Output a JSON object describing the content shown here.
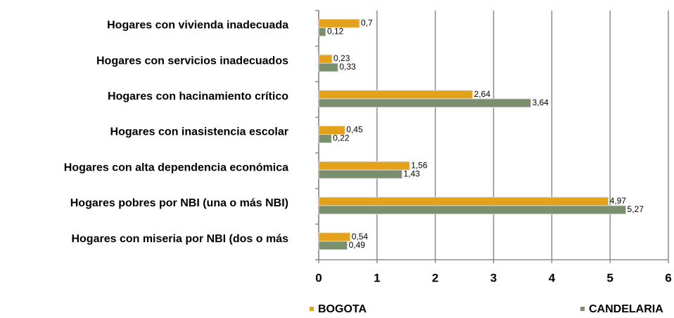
{
  "chart_data": {
    "type": "bar",
    "orientation": "horizontal",
    "categories": [
      "Hogares con vivienda inadecuada",
      "Hogares con servicios inadecuados",
      "Hogares con hacinamiento crítico",
      "Hogares con inasistencia escolar",
      "Hogares con alta dependencia económica",
      "Hogares pobres por NBI (una o más NBI)",
      "Hogares con miseria por NBI (dos o más"
    ],
    "series": [
      {
        "name": "BOGOTA",
        "color": "#e3a21a",
        "values": [
          0.7,
          0.23,
          2.64,
          0.45,
          1.56,
          4.97,
          0.54
        ],
        "value_labels": [
          "0,7",
          "0,23",
          "2,64",
          "0,45",
          "1,56",
          "4,97",
          "0,54"
        ]
      },
      {
        "name": "CANDELARIA",
        "color": "#7a8f6e",
        "values": [
          0.12,
          0.33,
          3.64,
          0.22,
          1.43,
          5.27,
          0.49
        ],
        "value_labels": [
          "0,12",
          "0,33",
          "3,64",
          "0,22",
          "1,43",
          "5,27",
          "0,49"
        ]
      }
    ],
    "xlim": [
      0,
      6
    ],
    "xticks": [
      0,
      1,
      2,
      3,
      4,
      5,
      6
    ],
    "grid": true
  }
}
